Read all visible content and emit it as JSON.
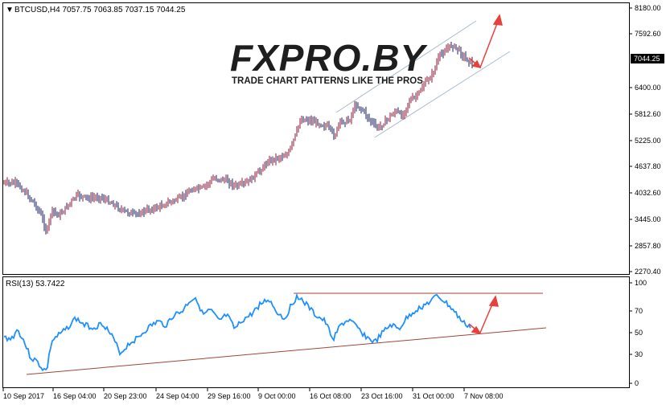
{
  "main_chart": {
    "header": "BTCUSD,H4  7057.75 7063.85 7037.15 7044.25",
    "current_price_label": "7044.25",
    "price_ticks": [
      "8180.00",
      "7592.60",
      "7044.25",
      "6400.00",
      "5812.60",
      "5225.00",
      "4637.80",
      "4032.60",
      "3445.00",
      "2857.80",
      "2270.40"
    ],
    "colors": {
      "bull": "#8b1a3a",
      "bear": "#1a1f5c",
      "channel": "#a9bccb",
      "arrow": "#e8413c"
    }
  },
  "watermark": {
    "brand": "FXPRO.BY",
    "tagline": "TRADE CHART PATTERNS LIKE THE PROS"
  },
  "rsi_panel": {
    "header": "RSI(13) 53.7422",
    "ticks": [
      "100",
      "70",
      "50",
      "30",
      "0"
    ],
    "colors": {
      "line": "#1e90ff",
      "trend": "#a0463c"
    }
  },
  "time_axis": {
    "labels": [
      "10 Sep 2017",
      "16 Sep 04:00",
      "20 Sep 23:00",
      "24 Sep 04:00",
      "29 Sep 16:00",
      "9 Oct 00:00",
      "16 Oct 08:00",
      "23 Oct 16:00",
      "31 Oct 00:00",
      "7 Nov 08:00"
    ]
  }
}
